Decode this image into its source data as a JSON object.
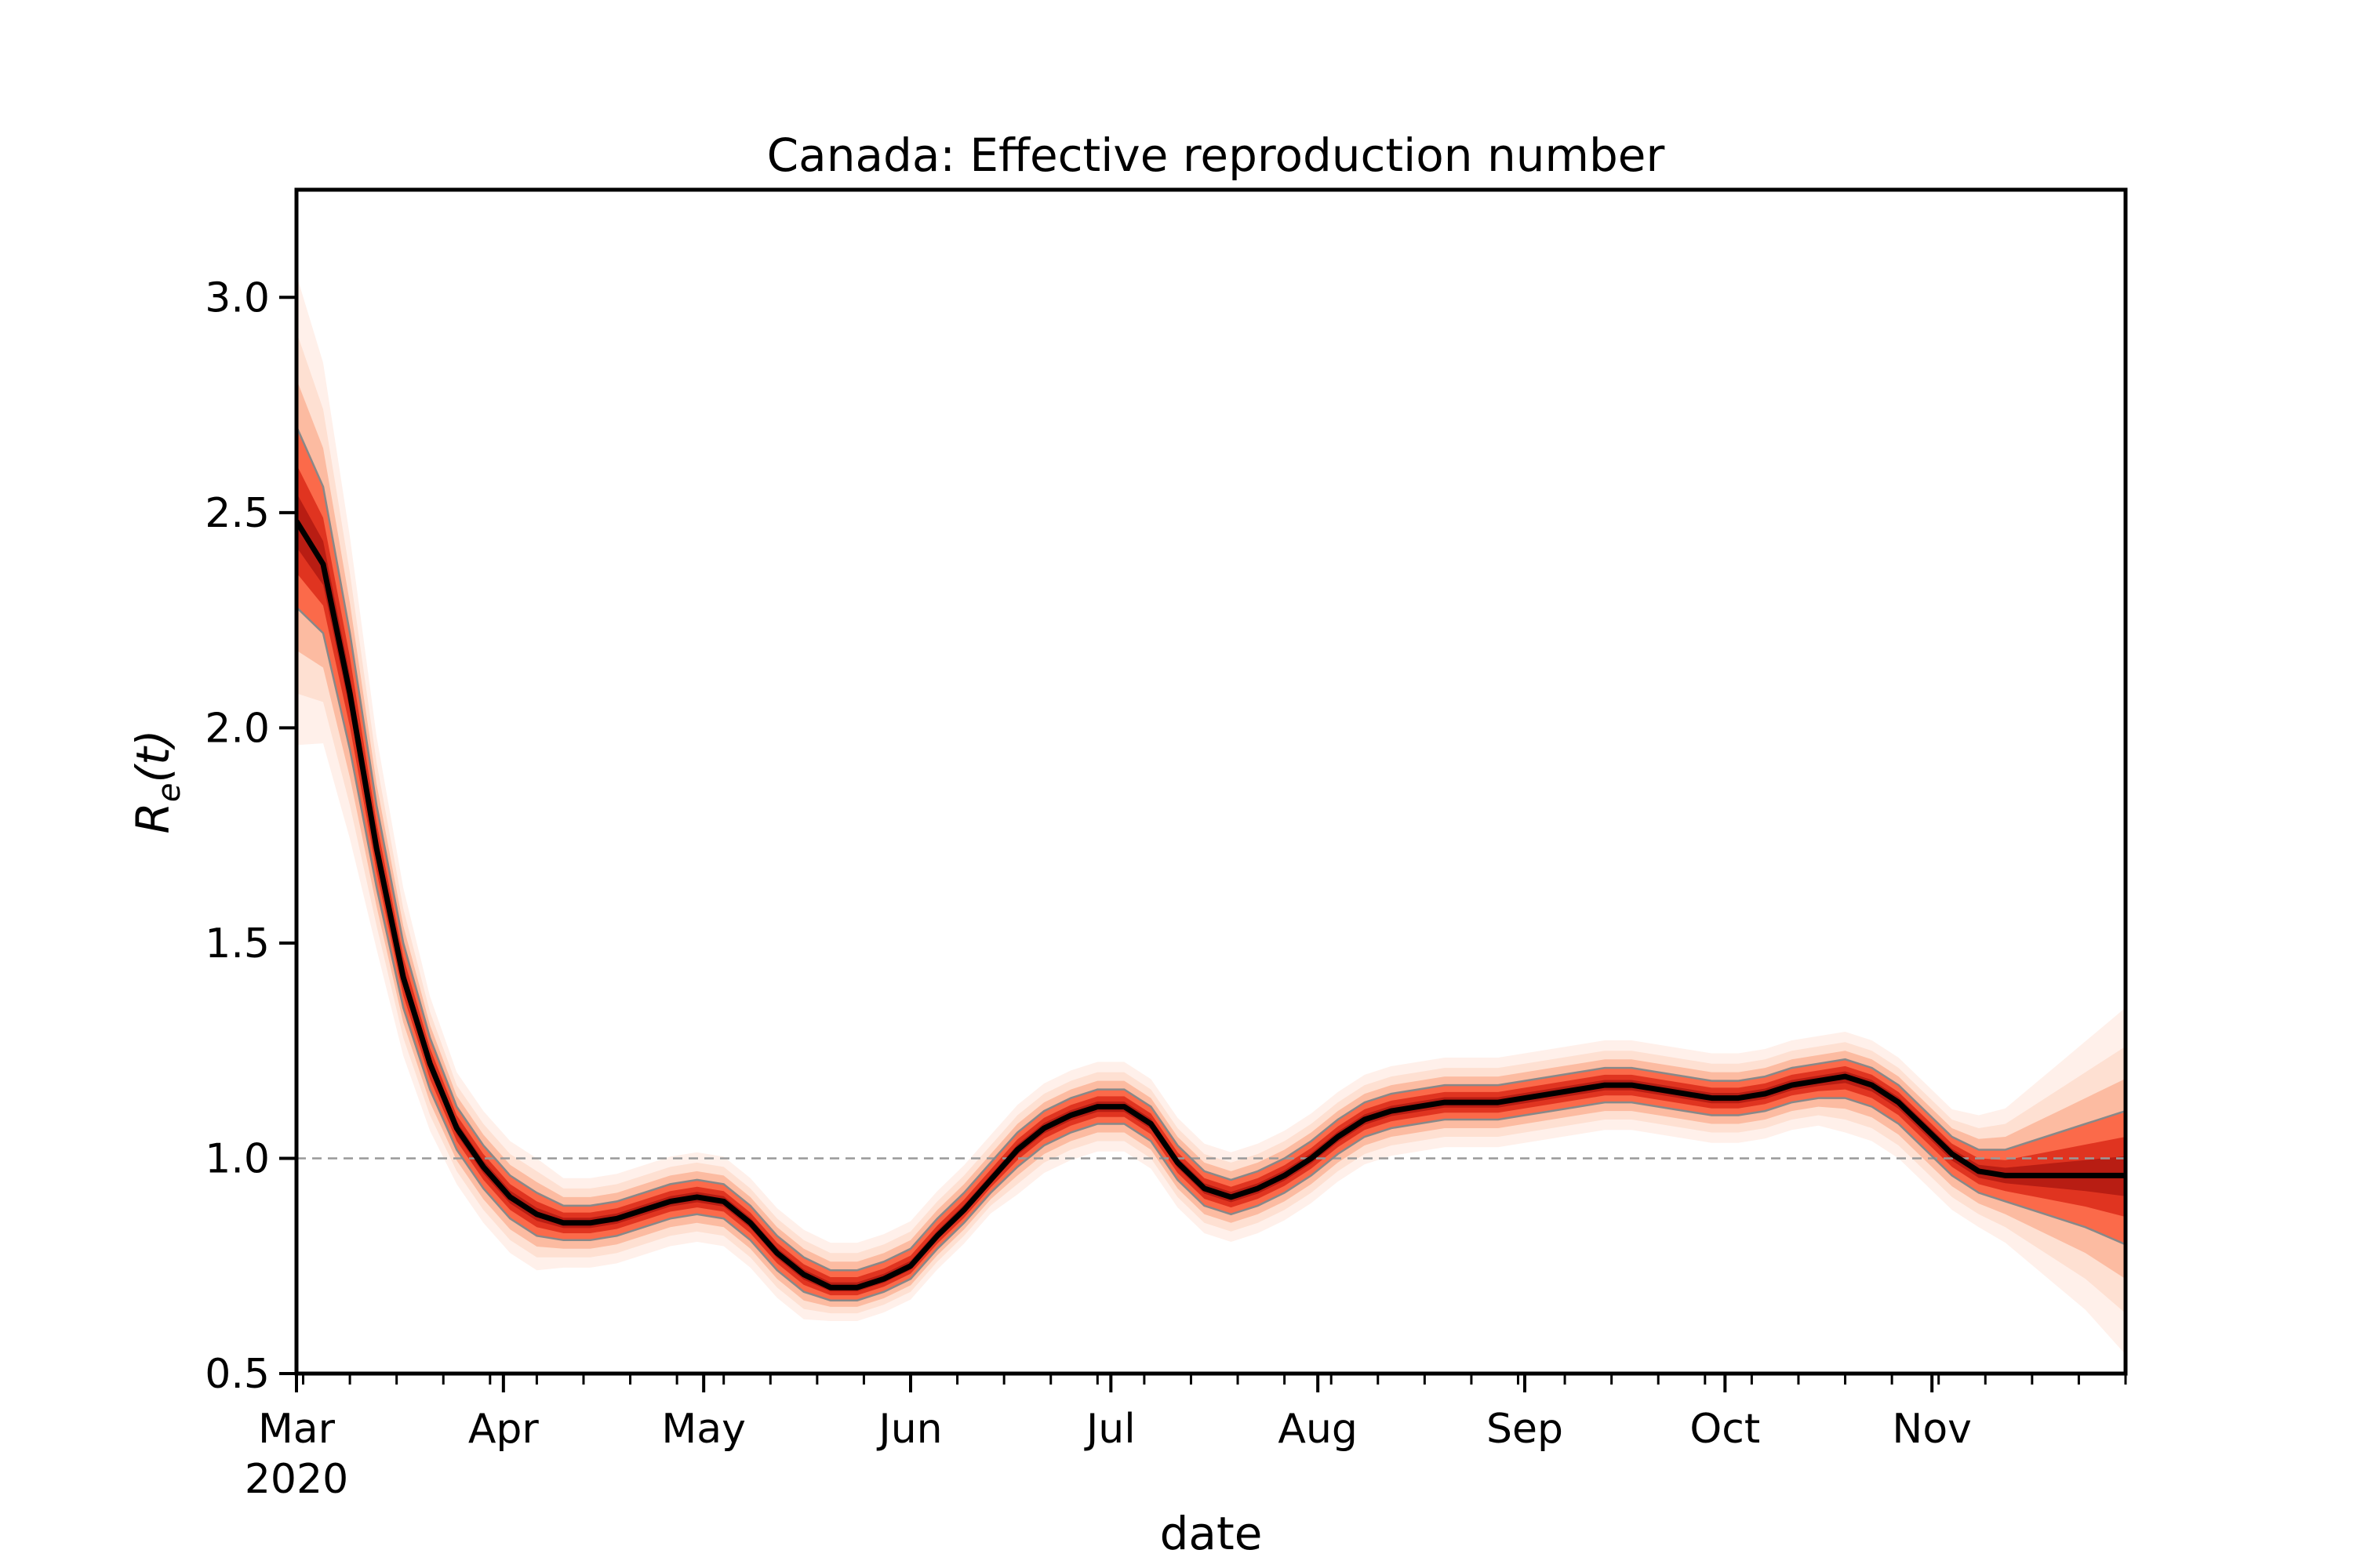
{
  "chart_data": {
    "type": "line",
    "title": "Canada: Effective reproduction number",
    "xlabel": "date",
    "ylabel": "R_e(t)",
    "ylabel_main": "R",
    "ylabel_sub": "e",
    "ylabel_arg": "(t)",
    "ylim": [
      0.5,
      3.25
    ],
    "xlim": [
      "2020-03-01",
      "2020-11-30"
    ],
    "yticks": [
      0.5,
      1.0,
      1.5,
      2.0,
      2.5,
      3.0
    ],
    "ytick_labels": [
      "0.5",
      "1.0",
      "1.5",
      "2.0",
      "2.5",
      "3.0"
    ],
    "xticks": [
      {
        "date": "2020-03-01",
        "label": "Mar",
        "sublabel": "2020"
      },
      {
        "date": "2020-04-01",
        "label": "Apr"
      },
      {
        "date": "2020-05-01",
        "label": "May"
      },
      {
        "date": "2020-06-01",
        "label": "Jun"
      },
      {
        "date": "2020-07-01",
        "label": "Jul"
      },
      {
        "date": "2020-08-01",
        "label": "Aug"
      },
      {
        "date": "2020-09-01",
        "label": "Sep"
      },
      {
        "date": "2020-10-01",
        "label": "Oct"
      },
      {
        "date": "2020-11-01",
        "label": "Nov"
      }
    ],
    "reference_line": {
      "y": 1.0,
      "style": "dashed",
      "color": "#999999"
    },
    "grid": false,
    "legend": "none",
    "colors": {
      "median": "#000000",
      "band": "#d7301f",
      "band_light": "#fcbba1",
      "bounds": "#888888"
    },
    "series": [
      {
        "dates": [
          "2020-03-01",
          "2020-03-05",
          "2020-03-09",
          "2020-03-13",
          "2020-03-17",
          "2020-03-21",
          "2020-03-25",
          "2020-03-29",
          "2020-04-02",
          "2020-04-06",
          "2020-04-10",
          "2020-04-14",
          "2020-04-18",
          "2020-04-22",
          "2020-04-26",
          "2020-04-30",
          "2020-05-04",
          "2020-05-08",
          "2020-05-12",
          "2020-05-16",
          "2020-05-20",
          "2020-05-24",
          "2020-05-28",
          "2020-06-01",
          "2020-06-05",
          "2020-06-09",
          "2020-06-13",
          "2020-06-17",
          "2020-06-21",
          "2020-06-25",
          "2020-06-29",
          "2020-07-03",
          "2020-07-07",
          "2020-07-11",
          "2020-07-15",
          "2020-07-19",
          "2020-07-23",
          "2020-07-27",
          "2020-07-31",
          "2020-08-04",
          "2020-08-08",
          "2020-08-12",
          "2020-08-16",
          "2020-08-20",
          "2020-08-24",
          "2020-08-28",
          "2020-09-01",
          "2020-09-05",
          "2020-09-09",
          "2020-09-13",
          "2020-09-17",
          "2020-09-21",
          "2020-09-25",
          "2020-09-29",
          "2020-10-03",
          "2020-10-07",
          "2020-10-11",
          "2020-10-15",
          "2020-10-19",
          "2020-10-23",
          "2020-10-27",
          "2020-10-31",
          "2020-11-04",
          "2020-11-08",
          "2020-11-12",
          "2020-11-16",
          "2020-11-20",
          "2020-11-24",
          "2020-11-30"
        ],
        "median": [
          2.48,
          2.38,
          2.08,
          1.72,
          1.42,
          1.22,
          1.07,
          0.98,
          0.91,
          0.87,
          0.85,
          0.85,
          0.86,
          0.88,
          0.9,
          0.91,
          0.9,
          0.85,
          0.78,
          0.73,
          0.7,
          0.7,
          0.72,
          0.75,
          0.82,
          0.88,
          0.95,
          1.02,
          1.07,
          1.1,
          1.12,
          1.12,
          1.08,
          0.99,
          0.93,
          0.91,
          0.93,
          0.96,
          1.0,
          1.05,
          1.09,
          1.11,
          1.12,
          1.13,
          1.13,
          1.13,
          1.14,
          1.15,
          1.16,
          1.17,
          1.17,
          1.16,
          1.15,
          1.14,
          1.14,
          1.15,
          1.17,
          1.18,
          1.19,
          1.17,
          1.13,
          1.07,
          1.01,
          0.97,
          0.96,
          0.96,
          0.96,
          0.96,
          0.96
        ],
        "lower": [
          2.28,
          2.22,
          1.95,
          1.63,
          1.35,
          1.16,
          1.02,
          0.93,
          0.86,
          0.82,
          0.81,
          0.81,
          0.82,
          0.84,
          0.86,
          0.87,
          0.86,
          0.81,
          0.74,
          0.69,
          0.67,
          0.67,
          0.69,
          0.72,
          0.79,
          0.85,
          0.92,
          0.98,
          1.03,
          1.06,
          1.08,
          1.08,
          1.04,
          0.95,
          0.89,
          0.87,
          0.89,
          0.92,
          0.96,
          1.01,
          1.05,
          1.07,
          1.08,
          1.09,
          1.09,
          1.09,
          1.1,
          1.11,
          1.12,
          1.13,
          1.13,
          1.12,
          1.11,
          1.1,
          1.1,
          1.11,
          1.13,
          1.14,
          1.14,
          1.12,
          1.08,
          1.02,
          0.96,
          0.92,
          0.9,
          0.88,
          0.86,
          0.84,
          0.8
        ],
        "upper": [
          2.7,
          2.56,
          2.22,
          1.82,
          1.5,
          1.28,
          1.12,
          1.03,
          0.96,
          0.92,
          0.89,
          0.89,
          0.9,
          0.92,
          0.94,
          0.95,
          0.94,
          0.89,
          0.82,
          0.77,
          0.74,
          0.74,
          0.76,
          0.79,
          0.86,
          0.92,
          0.99,
          1.06,
          1.11,
          1.14,
          1.16,
          1.16,
          1.12,
          1.03,
          0.97,
          0.95,
          0.97,
          1.0,
          1.04,
          1.09,
          1.13,
          1.15,
          1.16,
          1.17,
          1.17,
          1.17,
          1.18,
          1.19,
          1.2,
          1.21,
          1.21,
          1.2,
          1.19,
          1.18,
          1.18,
          1.19,
          1.21,
          1.22,
          1.23,
          1.21,
          1.17,
          1.11,
          1.05,
          1.02,
          1.02,
          1.04,
          1.06,
          1.08,
          1.11
        ]
      }
    ]
  }
}
